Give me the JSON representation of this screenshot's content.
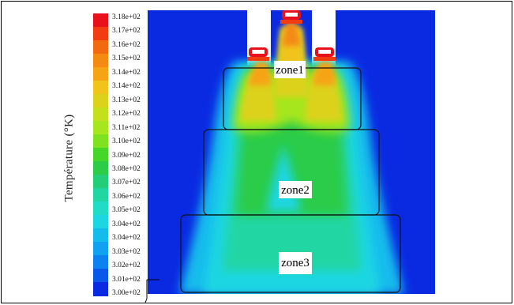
{
  "colorbar": {
    "title": "Température (°K)",
    "ticks": [
      "3.18e+02",
      "3.17e+02",
      "3.16e+02",
      "3.15e+02",
      "3.14e+02",
      "3.14e+02",
      "3.13e+02",
      "3.12e+02",
      "3.11e+02",
      "3.10e+02",
      "3.09e+02",
      "3.08e+02",
      "3.07e+02",
      "3.06e+02",
      "3.05e+02",
      "3.04e+02",
      "3.04e+02",
      "3.03e+02",
      "3.02e+02",
      "3.01e+02",
      "3.00e+02"
    ],
    "colors": [
      "#e8101a",
      "#f03c10",
      "#f26a10",
      "#f48a12",
      "#f5a416",
      "#f0c41a",
      "#dcd21c",
      "#c4df1c",
      "#a6e61e",
      "#7fe220",
      "#46d62a",
      "#2ccc48",
      "#24ce78",
      "#22d6a4",
      "#20dcc6",
      "#1cd6e2",
      "#14bcec",
      "#10a2f0",
      "#0c82f0",
      "#0a58ea",
      "#0a2ae2"
    ]
  },
  "zones": {
    "zone1": "zone1",
    "zone2": "zone2",
    "zone3": "zone3"
  }
}
